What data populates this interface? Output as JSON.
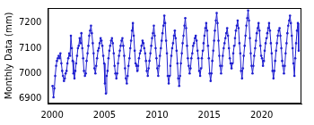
{
  "chart_data": {
    "type": "line",
    "y_label": "Monthly Data (mm)",
    "color": "#1f1fd0",
    "marker": "circle",
    "grid": false,
    "xlim": [
      1999.6,
      2023.8
    ],
    "xticks": [
      2000,
      2005,
      2010,
      2015,
      2020
    ],
    "ylim": [
      6880,
      7260
    ],
    "yticks": [
      6900,
      7000,
      7100,
      7200
    ],
    "x": [
      2000.04,
      2000.13,
      2000.21,
      2000.29,
      2000.38,
      2000.46,
      2000.54,
      2000.63,
      2000.71,
      2000.79,
      2000.88,
      2000.96,
      2001.04,
      2001.13,
      2001.21,
      2001.29,
      2001.38,
      2001.46,
      2001.54,
      2001.63,
      2001.71,
      2001.79,
      2001.88,
      2001.96,
      2002.04,
      2002.13,
      2002.21,
      2002.29,
      2002.38,
      2002.46,
      2002.54,
      2002.63,
      2002.71,
      2002.79,
      2002.88,
      2002.96,
      2003.04,
      2003.13,
      2003.21,
      2003.29,
      2003.38,
      2003.46,
      2003.54,
      2003.63,
      2003.71,
      2003.79,
      2003.88,
      2003.96,
      2004.04,
      2004.13,
      2004.21,
      2004.29,
      2004.38,
      2004.46,
      2004.54,
      2004.63,
      2004.71,
      2004.79,
      2004.88,
      2004.96,
      2005.04,
      2005.13,
      2005.21,
      2005.29,
      2005.38,
      2005.46,
      2005.54,
      2005.63,
      2005.71,
      2005.79,
      2005.88,
      2005.96,
      2006.04,
      2006.13,
      2006.21,
      2006.29,
      2006.38,
      2006.46,
      2006.54,
      2006.63,
      2006.71,
      2006.79,
      2006.88,
      2006.96,
      2007.04,
      2007.13,
      2007.21,
      2007.29,
      2007.38,
      2007.46,
      2007.54,
      2007.63,
      2007.71,
      2007.79,
      2007.88,
      2007.96,
      2008.04,
      2008.13,
      2008.21,
      2008.29,
      2008.38,
      2008.46,
      2008.54,
      2008.63,
      2008.71,
      2008.79,
      2008.88,
      2008.96,
      2009.04,
      2009.13,
      2009.21,
      2009.29,
      2009.38,
      2009.46,
      2009.54,
      2009.63,
      2009.71,
      2009.79,
      2009.88,
      2009.96,
      2010.04,
      2010.13,
      2010.21,
      2010.29,
      2010.38,
      2010.46,
      2010.54,
      2010.63,
      2010.71,
      2010.79,
      2010.88,
      2010.96,
      2011.04,
      2011.13,
      2011.21,
      2011.29,
      2011.38,
      2011.46,
      2011.54,
      2011.63,
      2011.71,
      2011.79,
      2011.88,
      2011.96,
      2012.04,
      2012.13,
      2012.21,
      2012.29,
      2012.38,
      2012.46,
      2012.54,
      2012.63,
      2012.71,
      2012.79,
      2012.88,
      2012.96,
      2013.04,
      2013.13,
      2013.21,
      2013.29,
      2013.38,
      2013.46,
      2013.54,
      2013.63,
      2013.71,
      2013.79,
      2013.88,
      2013.96,
      2014.04,
      2014.13,
      2014.21,
      2014.29,
      2014.38,
      2014.46,
      2014.54,
      2014.63,
      2014.71,
      2014.79,
      2014.88,
      2014.96,
      2015.04,
      2015.13,
      2015.21,
      2015.29,
      2015.38,
      2015.46,
      2015.54,
      2015.63,
      2015.71,
      2015.79,
      2015.88,
      2015.96,
      2016.04,
      2016.13,
      2016.21,
      2016.29,
      2016.38,
      2016.46,
      2016.54,
      2016.63,
      2016.71,
      2016.79,
      2016.88,
      2016.96,
      2017.04,
      2017.13,
      2017.21,
      2017.29,
      2017.38,
      2017.46,
      2017.54,
      2017.63,
      2017.71,
      2017.79,
      2017.88,
      2017.96,
      2018.04,
      2018.13,
      2018.21,
      2018.29,
      2018.38,
      2018.46,
      2018.54,
      2018.63,
      2018.71,
      2018.79,
      2018.88,
      2018.96,
      2019.04,
      2019.13,
      2019.21,
      2019.29,
      2019.38,
      2019.46,
      2019.54,
      2019.63,
      2019.71,
      2019.79,
      2019.88,
      2019.96,
      2020.04,
      2020.13,
      2020.21,
      2020.29,
      2020.38,
      2020.46,
      2020.54,
      2020.63,
      2020.71,
      2020.79,
      2020.88,
      2020.96,
      2021.04,
      2021.13,
      2021.21,
      2021.29,
      2021.38,
      2021.46,
      2021.54,
      2021.63,
      2021.71,
      2021.79,
      2021.88,
      2021.96,
      2022.04,
      2022.13,
      2022.21,
      2022.29,
      2022.38,
      2022.46,
      2022.54,
      2022.63,
      2022.71,
      2022.79,
      2022.88,
      2022.96,
      2023.04,
      2023.13,
      2023.21,
      2023.29,
      2023.38,
      2023.46,
      2023.54
    ],
    "values": [
      6950,
      6905,
      6940,
      6990,
      7030,
      7050,
      7060,
      7070,
      7060,
      7080,
      7040,
      7010,
      6990,
      6970,
      6980,
      7000,
      7010,
      7040,
      7060,
      7080,
      7070,
      7150,
      7100,
      7050,
      7000,
      6980,
      7010,
      7040,
      7070,
      7100,
      7110,
      7140,
      7120,
      7160,
      7100,
      7060,
      7010,
      6990,
      7000,
      7050,
      7080,
      7110,
      7150,
      7170,
      7190,
      7160,
      7120,
      7080,
      7020,
      7000,
      7030,
      7060,
      7090,
      7100,
      7120,
      7140,
      7130,
      7110,
      7070,
      7040,
      6960,
      6920,
      6990,
      7010,
      7060,
      7090,
      7110,
      7130,
      7140,
      7120,
      7080,
      7030,
      7000,
      6980,
      7000,
      7040,
      7070,
      7090,
      7110,
      7130,
      7140,
      7110,
      7070,
      7020,
      6980,
      6960,
      6990,
      7030,
      7060,
      7100,
      7130,
      7170,
      7200,
      7150,
      7090,
      7040,
      7030,
      7010,
      7030,
      7060,
      7080,
      7090,
      7110,
      7130,
      7120,
      7100,
      7080,
      7050,
      7010,
      6990,
      7020,
      7050,
      7080,
      7110,
      7140,
      7160,
      7190,
      7150,
      7100,
      7060,
      7020,
      6990,
      7030,
      7070,
      7100,
      7130,
      7160,
      7190,
      7230,
      7200,
      7130,
      7080,
      6990,
      6960,
      6990,
      7030,
      7070,
      7100,
      7120,
      7150,
      7170,
      7140,
      7090,
      7040,
      6980,
      6950,
      6990,
      7040,
      7080,
      7120,
      7150,
      7190,
      7220,
      7180,
      7110,
      7060,
      7030,
      7000,
      7020,
      7060,
      7080,
      7110,
      7120,
      7140,
      7150,
      7130,
      7090,
      7060,
      7010,
      6990,
      7020,
      7060,
      7090,
      7120,
      7150,
      7180,
      7200,
      7170,
      7110,
      7060,
      7000,
      6970,
      7000,
      7050,
      7090,
      7130,
      7170,
      7210,
      7240,
      7200,
      7130,
      7070,
      7030,
      7000,
      7030,
      7070,
      7100,
      7120,
      7140,
      7160,
      7180,
      7150,
      7100,
      7060,
      7040,
      7020,
      7040,
      7080,
      7110,
      7140,
      7170,
      7190,
      7210,
      7180,
      7120,
      7080,
      7010,
      6980,
      7020,
      7070,
      7110,
      7150,
      7190,
      7220,
      7250,
      7210,
      7140,
      7080,
      7030,
      7000,
      7030,
      7070,
      7100,
      7130,
      7160,
      7180,
      7200,
      7170,
      7110,
      7070,
      7060,
      7030,
      7050,
      7090,
      7120,
      7140,
      7160,
      7180,
      7200,
      7170,
      7120,
      7080,
      7010,
      6980,
      7010,
      7050,
      7090,
      7120,
      7150,
      7170,
      7180,
      7150,
      7100,
      7050,
      7030,
      7000,
      7030,
      7080,
      7120,
      7160,
      7190,
      7210,
      7230,
      7200,
      7150,
      7100,
      7040,
      6990,
      7060,
      7120,
      7170,
      7200,
      7090
    ]
  }
}
